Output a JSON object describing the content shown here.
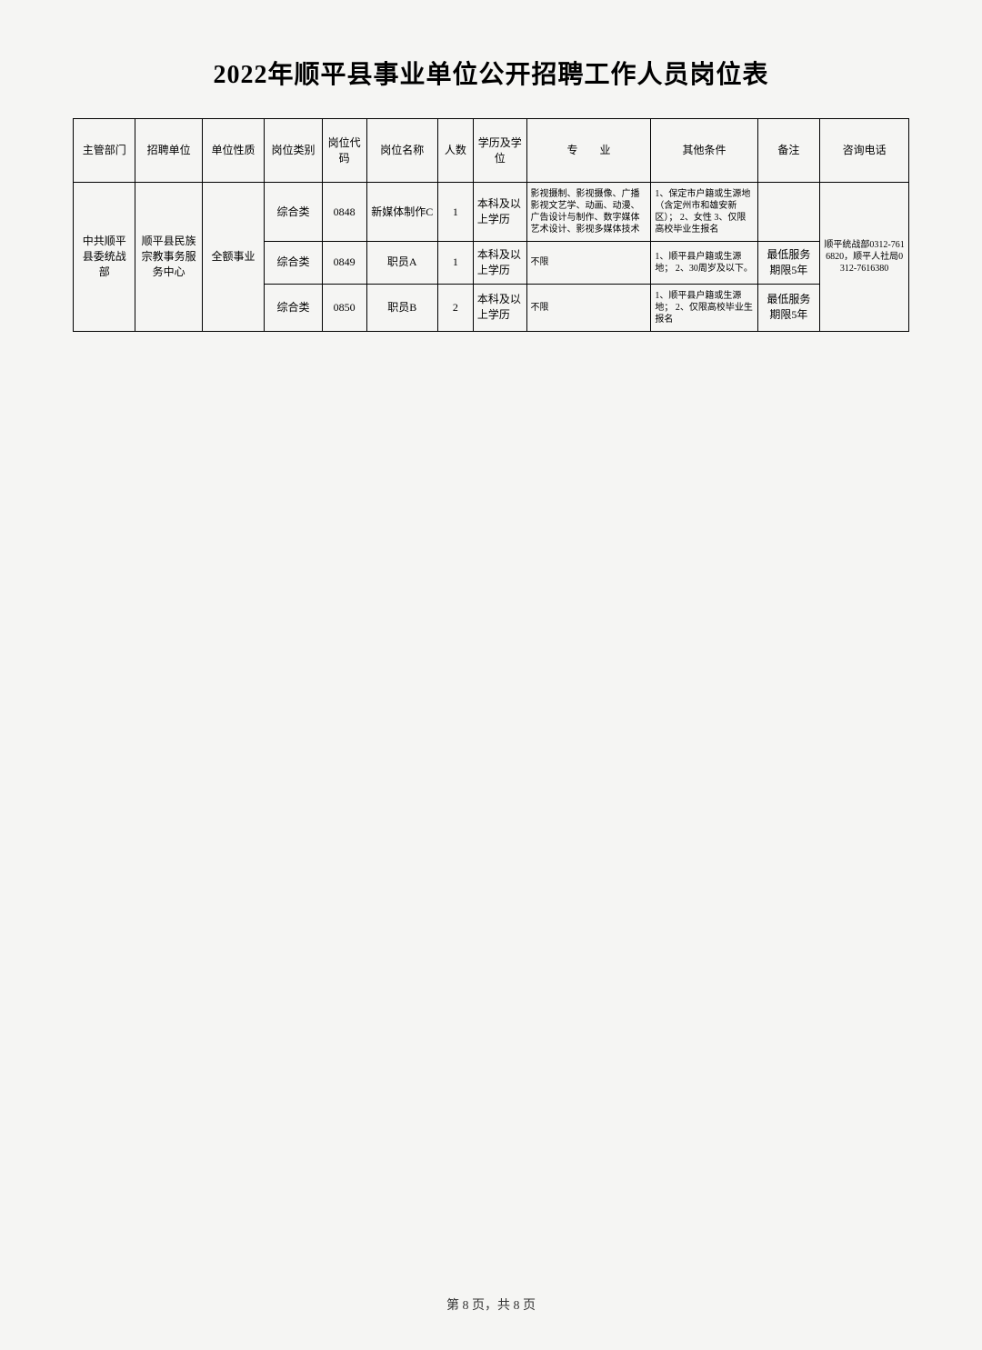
{
  "title": "2022年顺平县事业单位公开招聘工作人员岗位表",
  "footer": "第 8 页，共 8 页",
  "headers": {
    "dept": "主管部门",
    "unit": "招聘单位",
    "nature": "单位性质",
    "category": "岗位类别",
    "code": "岗位代码",
    "posname": "岗位名称",
    "count": "人数",
    "edu": "学历及学位",
    "major": "专　　业",
    "other": "其他条件",
    "remark": "备注",
    "phone": "咨询电话"
  },
  "merged": {
    "dept": "中共顺平县委统战部",
    "unit": "顺平县民族宗教事务服务中心",
    "nature": "全额事业",
    "phone": "顺平统战部0312-7616820，顺平人社局0312-7616380"
  },
  "rows": [
    {
      "category": "综合类",
      "code": "0848",
      "posname": "新媒体制作C",
      "count": "1",
      "edu": "本科及以上学历",
      "major": "影视摄制、影视摄像、广播影视文艺学、动画、动漫、广告设计与制作、数字媒体艺术设计、影视多媒体技术",
      "other": "1、保定市户籍或生源地（含定州市和雄安新区）；\n2、女性\n3、仅限高校毕业生报名",
      "remark": ""
    },
    {
      "category": "综合类",
      "code": "0849",
      "posname": "职员A",
      "count": "1",
      "edu": "本科及以上学历",
      "major": "不限",
      "other": "1、顺平县户籍或生源地；\n2、30周岁及以下。",
      "remark": "最低服务期限5年"
    },
    {
      "category": "综合类",
      "code": "0850",
      "posname": "职员B",
      "count": "2",
      "edu": "本科及以上学历",
      "major": "不限",
      "other": "1、顺平县户籍或生源地；\n2、仅限高校毕业生报名",
      "remark": "最低服务期限5年"
    }
  ]
}
